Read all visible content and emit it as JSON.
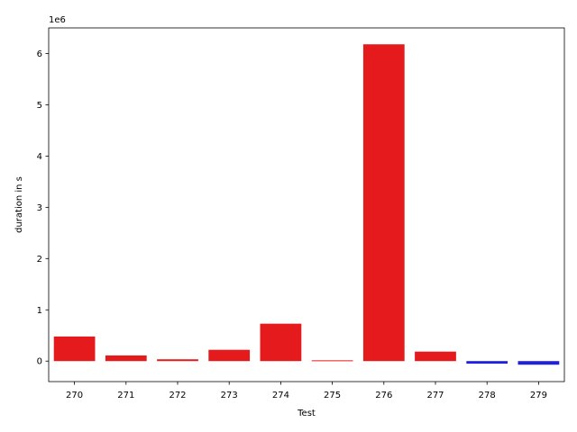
{
  "chart_data": {
    "type": "bar",
    "xlabel": "Test",
    "ylabel": "duration in s",
    "offset_label": "1e6",
    "categories": [
      "270",
      "271",
      "272",
      "273",
      "274",
      "275",
      "276",
      "277",
      "278",
      "279"
    ],
    "values": [
      480000,
      110000,
      35000,
      220000,
      730000,
      15000,
      6180000,
      185000,
      -50000,
      -70000
    ],
    "bar_colors": [
      "#e41a1c",
      "#e41a1c",
      "#e41a1c",
      "#e41a1c",
      "#e41a1c",
      "#e41a1c",
      "#e41a1c",
      "#e41a1c",
      "#1f1fe0",
      "#1f1fe0"
    ],
    "ylim": [
      -400000,
      6500000
    ],
    "yticks": [
      0,
      1000000,
      2000000,
      3000000,
      4000000,
      5000000,
      6000000
    ],
    "ytick_labels": [
      "0",
      "1",
      "2",
      "3",
      "4",
      "5",
      "6"
    ],
    "grid": false,
    "legend": "none"
  }
}
